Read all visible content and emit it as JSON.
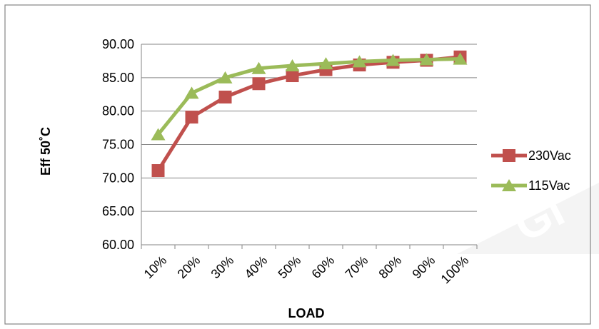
{
  "chart_data": {
    "type": "line",
    "categories": [
      "10%",
      "20%",
      "30%",
      "40%",
      "50%",
      "60%",
      "70%",
      "80%",
      "90%",
      "100%"
    ],
    "series": [
      {
        "name": "230Vac",
        "values": [
          71.1,
          79.1,
          82.1,
          84.1,
          85.3,
          86.2,
          86.9,
          87.3,
          87.6,
          88.1
        ],
        "color": "#c0504d",
        "marker": "square"
      },
      {
        "name": "115Vac",
        "values": [
          76.5,
          82.7,
          85.0,
          86.4,
          86.8,
          87.1,
          87.4,
          87.6,
          87.7,
          87.8
        ],
        "color": "#9bbb59",
        "marker": "triangle"
      }
    ],
    "y_ticks": [
      "60.00",
      "65.00",
      "70.00",
      "75.00",
      "80.00",
      "85.00",
      "90.00"
    ],
    "ylim": [
      60,
      90
    ],
    "xlabel": "LOAD",
    "ylabel": "Eff 50˚C",
    "grid": "horizontal",
    "legend_position": "right"
  },
  "colors": {
    "gridline": "#868686",
    "border": "#868686",
    "watermark": "#f2f2f2"
  }
}
